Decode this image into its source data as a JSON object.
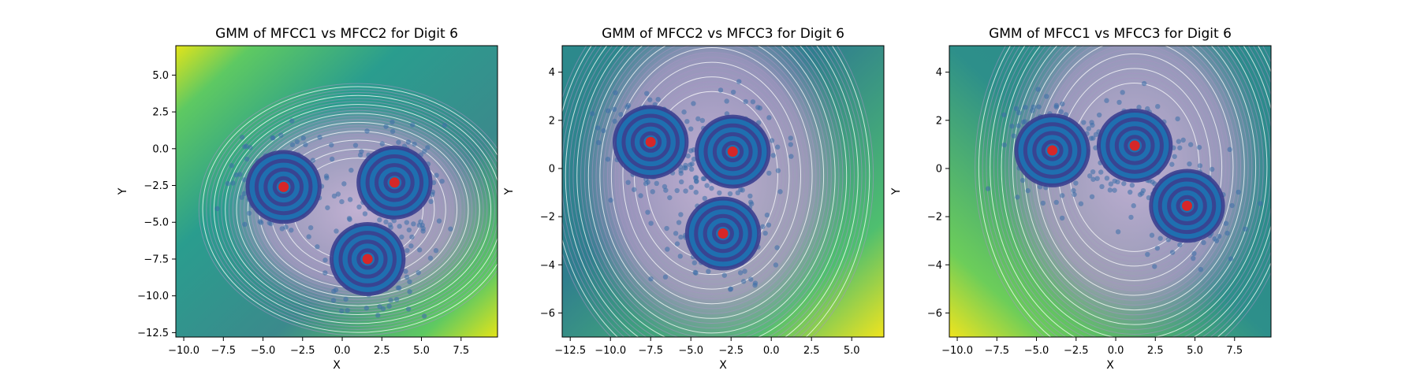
{
  "chart_data": [
    {
      "type": "scatter",
      "title": "GMM of MFCC1 vs MFCC2 for Digit 6",
      "xlabel": "X",
      "ylabel": "Y",
      "xlim": [
        -10.5,
        9.8
      ],
      "ylim": [
        -12.8,
        7.0
      ],
      "xticks": [
        -10.0,
        -7.5,
        -5.0,
        -2.5,
        0.0,
        2.5,
        5.0,
        7.5
      ],
      "yticks": [
        -12.5,
        -10.0,
        -7.5,
        -5.0,
        -2.5,
        0.0,
        2.5,
        5.0
      ],
      "means": [
        [
          -3.7,
          -2.6
        ],
        [
          3.3,
          -2.3
        ],
        [
          1.6,
          -7.5
        ]
      ],
      "series": [
        {
          "values": [
            [
              -3.7,
              -2.6
            ],
            [
              3.3,
              -2.3
            ],
            [
              1.6,
              -7.5
            ]
          ]
        }
      ],
      "colormap": "viridis",
      "mean_color": "#d62728",
      "point_color": "#3b6ea8"
    },
    {
      "type": "scatter",
      "title": "GMM of MFCC2 vs MFCC3 for Digit 6",
      "xlabel": "X",
      "ylabel": "Y",
      "xlim": [
        -13.0,
        7.0
      ],
      "ylim": [
        -7.0,
        5.1
      ],
      "xticks": [
        -12.5,
        -10.0,
        -7.5,
        -5.0,
        -2.5,
        0.0,
        2.5,
        5.0
      ],
      "yticks": [
        -6,
        -4,
        -2,
        0,
        2,
        4
      ],
      "means": [
        [
          -7.5,
          1.1
        ],
        [
          -2.4,
          0.7
        ],
        [
          -3.0,
          -2.7
        ]
      ],
      "series": [
        {
          "values": [
            [
              -7.5,
              1.1
            ],
            [
              -2.4,
              0.7
            ],
            [
              -3.0,
              -2.7
            ]
          ]
        }
      ],
      "colormap": "viridis",
      "mean_color": "#d62728",
      "point_color": "#3b6ea8"
    },
    {
      "type": "scatter",
      "title": "GMM of MFCC1 vs MFCC3 for Digit 6",
      "xlabel": "X",
      "ylabel": "Y",
      "xlim": [
        -10.5,
        9.8
      ],
      "ylim": [
        -7.0,
        5.1
      ],
      "xticks": [
        -10.0,
        -7.5,
        -5.0,
        -2.5,
        0.0,
        2.5,
        5.0,
        7.5
      ],
      "yticks": [
        -6,
        -4,
        -2,
        0,
        2,
        4
      ],
      "means": [
        [
          -4.0,
          0.75
        ],
        [
          1.2,
          0.95
        ],
        [
          4.5,
          -1.55
        ]
      ],
      "series": [
        {
          "values": [
            [
              -4.0,
              0.75
            ],
            [
              1.2,
              0.95
            ],
            [
              4.5,
              -1.55
            ]
          ]
        }
      ],
      "colormap": "viridis",
      "mean_color": "#d62728",
      "point_color": "#3b6ea8"
    }
  ]
}
